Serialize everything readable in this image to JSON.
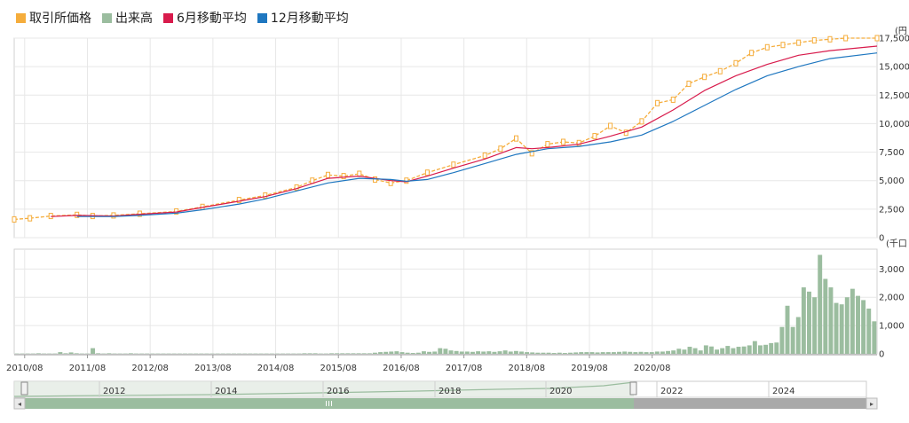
{
  "colors": {
    "price": "#f5ad3c",
    "volume": "#9bbd9f",
    "ma6": "#d81b4c",
    "ma12": "#1f77c0",
    "grid": "#e7e7e7",
    "axis": "#999999",
    "navigator_fill": "#9bbd9f",
    "scrollbar": "#a9a9a9"
  },
  "legend": {
    "price": "取引所価格",
    "volume": "出来高",
    "ma6": "6月移動平均",
    "ma12": "12月移動平均"
  },
  "navigator": {
    "years": [
      "2012",
      "2014",
      "2016",
      "2018",
      "2020",
      "2022",
      "2024"
    ]
  },
  "chart_data": [
    {
      "type": "line",
      "panel": "price",
      "unit_label": "(円",
      "ylim": [
        0,
        17500
      ],
      "y_ticks": [
        "0",
        "2,500",
        "5,000",
        "7,500",
        "10,000",
        "12,500",
        "15,000",
        "17,500"
      ],
      "x_ticks": [
        "2010/08",
        "2011/08",
        "2012/08",
        "2013/08",
        "2014/08",
        "2015/08",
        "2016/08",
        "2017/08",
        "2018/08",
        "2019/08",
        "2020/08"
      ],
      "x_start": "2010/06",
      "x_end": "2024/03",
      "series": [
        {
          "name": "取引所価格",
          "points": [
            [
              "2010/06",
              1600
            ],
            [
              "2010/09",
              1700
            ],
            [
              "2011/01",
              1900
            ],
            [
              "2011/06",
              2000
            ],
            [
              "2011/09",
              1900
            ],
            [
              "2012/01",
              1950
            ],
            [
              "2012/06",
              2100
            ],
            [
              "2013/01",
              2300
            ],
            [
              "2013/06",
              2700
            ],
            [
              "2014/01",
              3300
            ],
            [
              "2014/06",
              3700
            ],
            [
              "2014/12",
              4400
            ],
            [
              "2015/03",
              5000
            ],
            [
              "2015/06",
              5500
            ],
            [
              "2015/09",
              5400
            ],
            [
              "2015/12",
              5600
            ],
            [
              "2016/03",
              5100
            ],
            [
              "2016/06",
              4800
            ],
            [
              "2016/09",
              5000
            ],
            [
              "2017/01",
              5700
            ],
            [
              "2017/06",
              6400
            ],
            [
              "2017/12",
              7200
            ],
            [
              "2018/03",
              7800
            ],
            [
              "2018/06",
              8700
            ],
            [
              "2018/09",
              7400
            ],
            [
              "2018/12",
              8200
            ],
            [
              "2019/03",
              8400
            ],
            [
              "2019/06",
              8300
            ],
            [
              "2019/09",
              8900
            ],
            [
              "2019/12",
              9800
            ],
            [
              "2020/03",
              9200
            ],
            [
              "2020/06",
              10200
            ],
            [
              "2020/09",
              11800
            ],
            [
              "2020/12",
              12100
            ],
            [
              "2021/03",
              13500
            ],
            [
              "2021/06",
              14100
            ],
            [
              "2021/09",
              14600
            ],
            [
              "2021/12",
              15300
            ],
            [
              "2022/03",
              16200
            ],
            [
              "2022/06",
              16700
            ],
            [
              "2022/09",
              16900
            ],
            [
              "2022/12",
              17100
            ],
            [
              "2023/03",
              17300
            ],
            [
              "2023/06",
              17400
            ],
            [
              "2023/09",
              17500
            ],
            [
              "2024/03",
              17500
            ]
          ]
        },
        {
          "name": "6月移動平均",
          "points": [
            [
              "2011/01",
              1850
            ],
            [
              "2011/06",
              1950
            ],
            [
              "2012/01",
              1900
            ],
            [
              "2012/06",
              2050
            ],
            [
              "2013/01",
              2250
            ],
            [
              "2013/06",
              2650
            ],
            [
              "2014/01",
              3200
            ],
            [
              "2014/06",
              3600
            ],
            [
              "2014/12",
              4300
            ],
            [
              "2015/06",
              5200
            ],
            [
              "2015/12",
              5400
            ],
            [
              "2016/06",
              5000
            ],
            [
              "2016/09",
              4900
            ],
            [
              "2017/01",
              5400
            ],
            [
              "2017/06",
              6100
            ],
            [
              "2017/12",
              6900
            ],
            [
              "2018/06",
              7900
            ],
            [
              "2018/09",
              7800
            ],
            [
              "2018/12",
              7900
            ],
            [
              "2019/06",
              8200
            ],
            [
              "2019/12",
              8900
            ],
            [
              "2020/06",
              9700
            ],
            [
              "2020/12",
              11200
            ],
            [
              "2021/06",
              12900
            ],
            [
              "2021/12",
              14200
            ],
            [
              "2022/06",
              15200
            ],
            [
              "2022/12",
              16000
            ],
            [
              "2023/06",
              16400
            ],
            [
              "2024/03",
              16800
            ]
          ]
        },
        {
          "name": "12月移動平均",
          "points": [
            [
              "2011/06",
              1850
            ],
            [
              "2012/01",
              1850
            ],
            [
              "2012/06",
              1950
            ],
            [
              "2013/01",
              2150
            ],
            [
              "2013/06",
              2450
            ],
            [
              "2014/01",
              2950
            ],
            [
              "2014/06",
              3400
            ],
            [
              "2014/12",
              4100
            ],
            [
              "2015/06",
              4800
            ],
            [
              "2015/12",
              5200
            ],
            [
              "2016/06",
              5100
            ],
            [
              "2016/09",
              4950
            ],
            [
              "2017/01",
              5100
            ],
            [
              "2017/06",
              5700
            ],
            [
              "2017/12",
              6500
            ],
            [
              "2018/06",
              7300
            ],
            [
              "2018/12",
              7800
            ],
            [
              "2019/06",
              8000
            ],
            [
              "2019/12",
              8400
            ],
            [
              "2020/06",
              9000
            ],
            [
              "2020/12",
              10200
            ],
            [
              "2021/06",
              11600
            ],
            [
              "2021/12",
              13000
            ],
            [
              "2022/06",
              14200
            ],
            [
              "2022/12",
              15000
            ],
            [
              "2023/06",
              15700
            ],
            [
              "2024/03",
              16200
            ]
          ]
        }
      ]
    },
    {
      "type": "bar",
      "panel": "volume",
      "name": "出来高",
      "unit_label": "(千口",
      "ylim": [
        0,
        3700
      ],
      "y_ticks": [
        "0",
        "1,000",
        "2,000",
        "3,000"
      ],
      "values": [
        10,
        10,
        10,
        10,
        20,
        10,
        10,
        10,
        60,
        20,
        50,
        20,
        10,
        10,
        200,
        20,
        10,
        20,
        10,
        10,
        10,
        20,
        10,
        10,
        10,
        10,
        10,
        10,
        10,
        10,
        10,
        10,
        10,
        10,
        10,
        10,
        10,
        10,
        10,
        10,
        10,
        10,
        10,
        10,
        10,
        10,
        10,
        10,
        10,
        10,
        10,
        10,
        10,
        20,
        20,
        20,
        10,
        10,
        20,
        20,
        20,
        20,
        20,
        20,
        20,
        20,
        40,
        60,
        70,
        80,
        90,
        60,
        40,
        30,
        40,
        90,
        70,
        80,
        200,
        180,
        120,
        100,
        80,
        80,
        70,
        90,
        80,
        90,
        70,
        90,
        120,
        80,
        100,
        80,
        60,
        50,
        40,
        40,
        40,
        30,
        40,
        30,
        40,
        50,
        60,
        60,
        60,
        50,
        60,
        60,
        60,
        70,
        80,
        70,
        60,
        70,
        60,
        60,
        80,
        80,
        100,
        120,
        180,
        150,
        250,
        200,
        120,
        300,
        260,
        150,
        200,
        280,
        200,
        250,
        260,
        300,
        450,
        300,
        320,
        380,
        400,
        950,
        1700,
        950,
        1300,
        2350,
        2200,
        2000,
        3500,
        2650,
        2350,
        1800,
        1750,
        2000,
        2300,
        2050,
        1900,
        1600,
        1150
      ]
    }
  ]
}
